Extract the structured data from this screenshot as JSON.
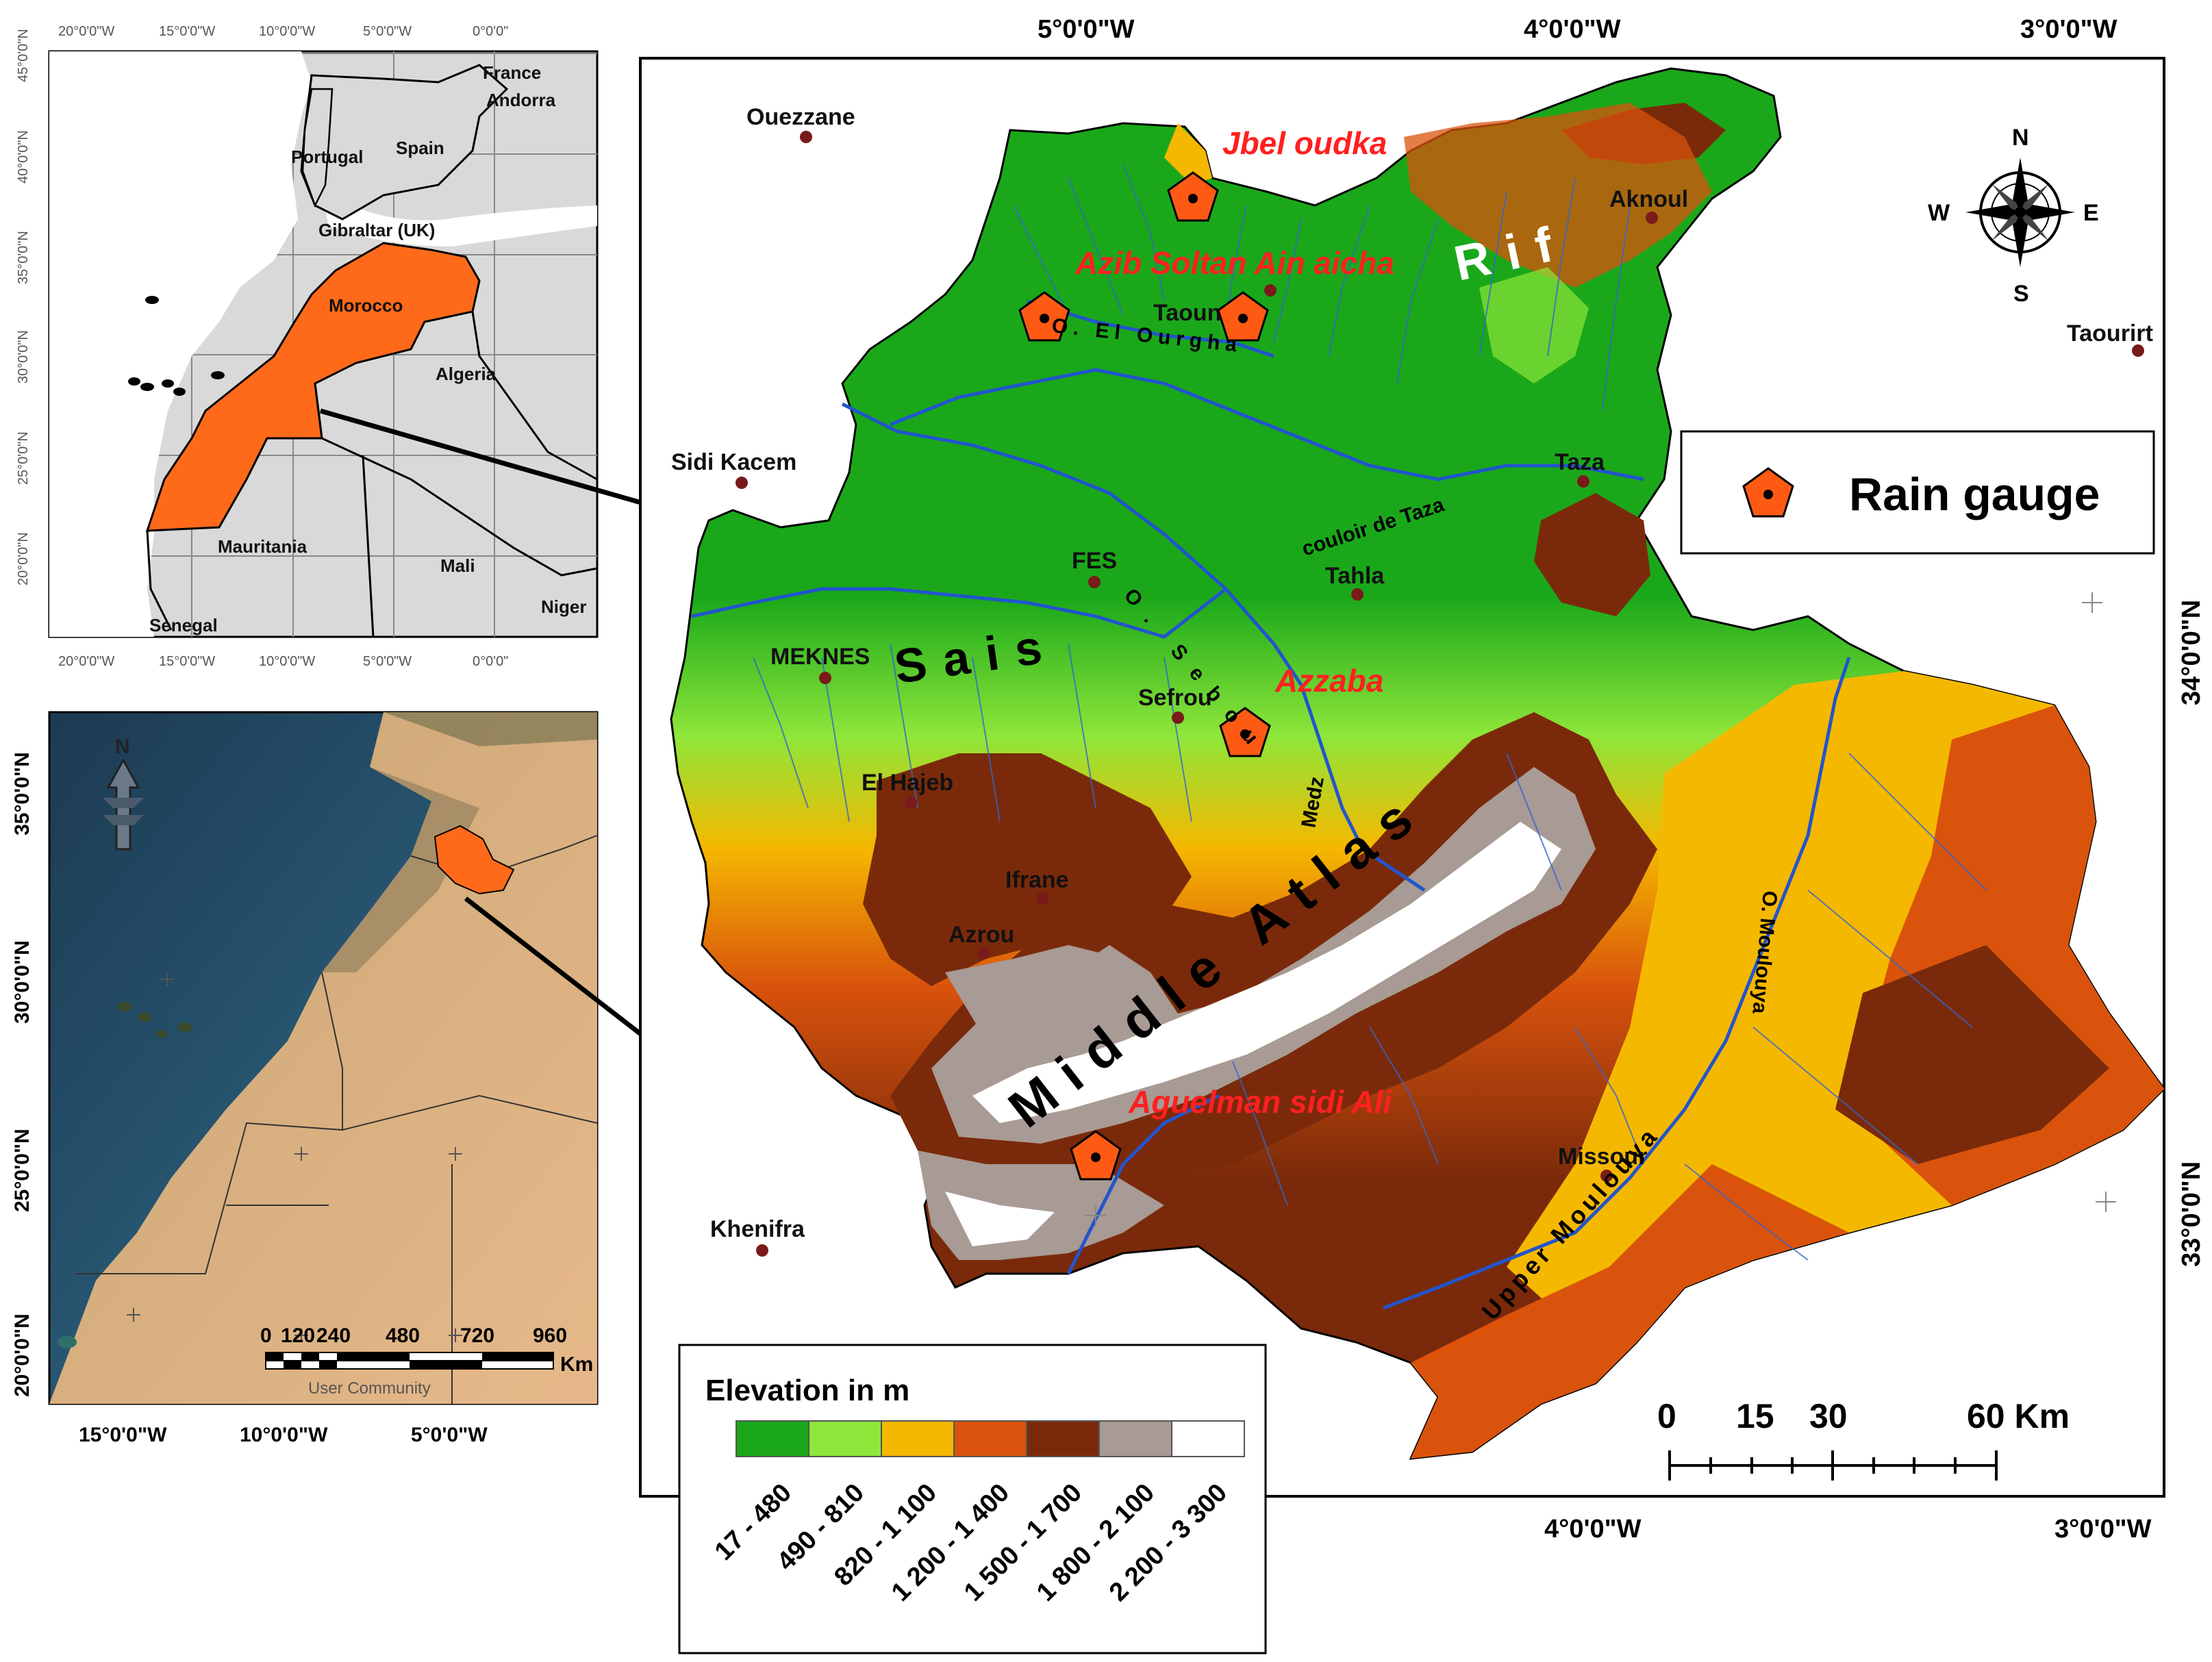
{
  "inset_top": {
    "lat_labels": [
      "45°0'0\"N",
      "40°0'0\"N",
      "35°0'0\"N",
      "30°0'0\"N",
      "25°0'0\"N",
      "20°0'0\"N"
    ],
    "lon_labels": [
      "20°0'0\"W",
      "15°0'0\"W",
      "10°0'0\"W",
      "5°0'0\"W",
      "0°0'0\""
    ],
    "countries": [
      "France",
      "Andorra",
      "Spain",
      "Portugal",
      "Gibraltar (UK)",
      "Morocco",
      "Algeria",
      "Mauritania",
      "Mali",
      "Niger",
      "Senegal"
    ]
  },
  "inset_satellite": {
    "lat_labels": [
      "35°0'0\"N",
      "30°0'0\"N",
      "25°0'0\"N",
      "20°0'0\"N"
    ],
    "lon_labels": [
      "15°0'0\"W",
      "10°0'0\"W",
      "5°0'0\"W"
    ],
    "scale_labels": [
      "0",
      "120",
      "240",
      "480",
      "720",
      "960"
    ],
    "scale_unit": "Km",
    "credit": "User Community",
    "north": "N"
  },
  "main_map": {
    "top_lon_labels": [
      "5°0'0\"W",
      "4°0'0\"W",
      "3°0'0\"W"
    ],
    "bottom_lon_labels": [
      "4°0'0\"W",
      "3°0'0\"W"
    ],
    "right_lat_labels": [
      "34°0'0\"N",
      "33°0'0\"N"
    ],
    "cities": [
      "Ouezzane",
      "Sidi Kacem",
      "Aknoul",
      "Taourirt",
      "Taounate",
      "Taza",
      "FES",
      "Tahla",
      "MEKNES",
      "Sefrou",
      "El Hajeb",
      "Ifrane",
      "Azrou",
      "Khenifra",
      "Missour"
    ],
    "stations": [
      "Jbel oudka",
      "Azib Soltan Ain aicha",
      "Azzaba",
      "Aguelman sidi Ali"
    ],
    "regions": [
      "Rif",
      "Sais",
      "Middle Atlas"
    ],
    "rivers": [
      "O. El Ourgha",
      "O. Sebou",
      "Medz",
      "couloir de Taza",
      "O. Moulouya",
      "Upper Moulouya"
    ],
    "compass": {
      "n": "N",
      "s": "S",
      "e": "E",
      "w": "W"
    }
  },
  "legend": {
    "rain_gauge_label": "Rain gauge",
    "elevation_title": "Elevation in m",
    "classes": [
      {
        "label": "17 - 480",
        "color": "#1aa81a"
      },
      {
        "label": "490 - 810",
        "color": "#8ee63a"
      },
      {
        "label": "820 - 1 100",
        "color": "#f5b800"
      },
      {
        "label": "1 200 - 1 400",
        "color": "#d9530c"
      },
      {
        "label": "1 500 - 1 700",
        "color": "#7a2a0a"
      },
      {
        "label": "1 800 - 2 100",
        "color": "#a89a94"
      },
      {
        "label": "2 200 - 3 300",
        "color": "#ffffff"
      }
    ]
  },
  "scale_bar": {
    "labels": [
      "0",
      "15",
      "30",
      "60 Km"
    ]
  },
  "colors": {
    "morocco": "#ff6a1a",
    "gauge": "#ff5a14",
    "station_text": "#ff2020",
    "river": "#2255cc",
    "land_gray": "#d9d9d9"
  }
}
